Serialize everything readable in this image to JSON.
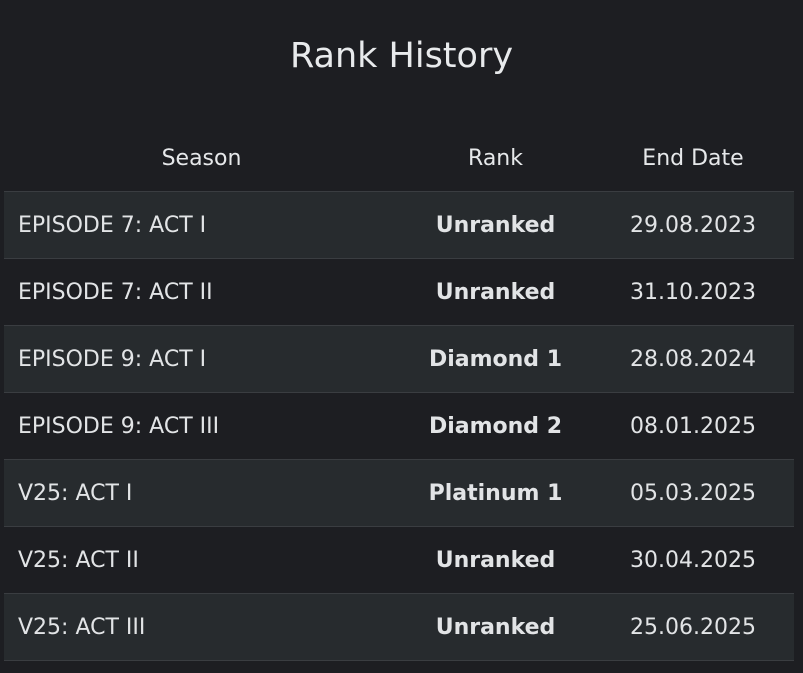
{
  "page": {
    "title": "Rank History"
  },
  "table": {
    "headers": {
      "season": "Season",
      "rank": "Rank",
      "end_date": "End Date"
    },
    "rows": [
      {
        "season": "EPISODE 7: ACT I",
        "rank": "Unranked",
        "end_date": "29.08.2023"
      },
      {
        "season": "EPISODE 7: ACT II",
        "rank": "Unranked",
        "end_date": "31.10.2023"
      },
      {
        "season": "EPISODE 9: ACT I",
        "rank": "Diamond 1",
        "end_date": "28.08.2024"
      },
      {
        "season": "EPISODE 9: ACT III",
        "rank": "Diamond 2",
        "end_date": "08.01.2025"
      },
      {
        "season": "V25: ACT I",
        "rank": "Platinum 1",
        "end_date": "05.03.2025"
      },
      {
        "season": "V25: ACT II",
        "rank": "Unranked",
        "end_date": "30.04.2025"
      },
      {
        "season": "V25: ACT III",
        "rank": "Unranked",
        "end_date": "25.06.2025"
      }
    ]
  },
  "colors": {
    "background": "#1d1e22",
    "row_stripe": "#272b2e",
    "divider": "#3a3d41",
    "text": "#e2e4e6"
  }
}
